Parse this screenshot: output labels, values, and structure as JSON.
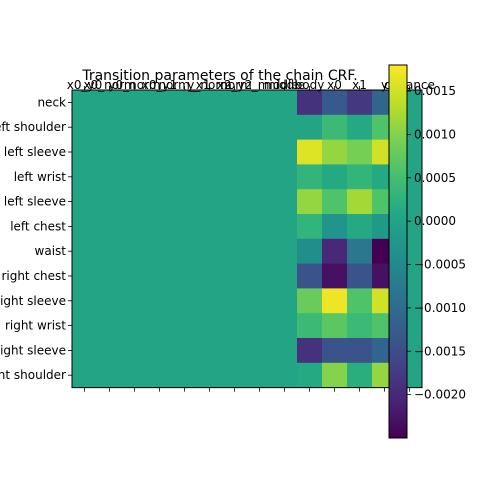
{
  "chart_data": {
    "type": "heatmap",
    "title": "Transition parameters of the chain CRF.",
    "x_labels": [
      "x0_y0",
      "x0_norm",
      "y0_norm",
      "x0_y1",
      "norm_x1",
      "y_norm",
      "x2_y2",
      "norm_middle",
      "middle",
      "body",
      "x0",
      "x1",
      "y",
      "distance"
    ],
    "y_labels": [
      "neck",
      "left shoulder",
      "left sleeve",
      "left wrist",
      "left sleeve",
      "left chest",
      "waist",
      "right chest",
      "right sleeve",
      "right wrist",
      "right sleeve",
      "right shoulder"
    ],
    "values": [
      [
        0,
        0,
        0,
        0,
        0,
        0,
        0,
        0,
        0,
        -0.0019,
        -0.0013,
        -0.0018,
        -0.0011,
        0
      ],
      [
        0,
        0,
        0,
        0,
        0,
        0,
        0,
        0,
        0,
        0,
        0.0004,
        0.0001,
        0.0006,
        0
      ],
      [
        0,
        0,
        0,
        0,
        0,
        0,
        0,
        0,
        0,
        0.0016,
        0.0011,
        0.0009,
        0.0015,
        0
      ],
      [
        0,
        0,
        0,
        0,
        0,
        0,
        0,
        0,
        0,
        0.0003,
        0.0001,
        0.0003,
        0.0001,
        0
      ],
      [
        0,
        0,
        0,
        0,
        0,
        0,
        0,
        0,
        0,
        0.0011,
        0.0006,
        0.0012,
        0.0006,
        0
      ],
      [
        0,
        0,
        0,
        0,
        0,
        0,
        0,
        0,
        0,
        0.0003,
        -0.0003,
        0.0001,
        -0.0002,
        0
      ],
      [
        0,
        0,
        0,
        0,
        0,
        0,
        0,
        0,
        0,
        -0.0004,
        -0.002,
        -0.0008,
        -0.0025,
        0
      ],
      [
        0,
        0,
        0,
        0,
        0,
        0,
        0,
        0,
        0,
        -0.0014,
        -0.0023,
        -0.0014,
        -0.0023,
        0
      ],
      [
        0,
        0,
        0,
        0,
        0,
        0,
        0,
        0,
        0,
        0.0008,
        0.0017,
        0.0006,
        0.0015,
        0
      ],
      [
        0,
        0,
        0,
        0,
        0,
        0,
        0,
        0,
        0,
        0.0004,
        0.0007,
        0.0004,
        0.0006,
        0
      ],
      [
        0,
        0,
        0,
        0,
        0,
        0,
        0,
        0,
        0,
        -0.0019,
        -0.0014,
        -0.0014,
        -0.0011,
        0
      ],
      [
        0,
        0,
        0,
        0,
        0,
        0,
        0,
        0,
        0,
        0.0001,
        0.001,
        0.0002,
        0.0011,
        0
      ]
    ],
    "vmin": -0.0025,
    "vmax": 0.0018,
    "colormap": "viridis",
    "colorbar_ticks": [
      "0.0015",
      "0.0010",
      "0.0005",
      "0.0000",
      "−0.0005",
      "−0.0010",
      "−0.0015",
      "−0.0020"
    ],
    "colorbar_tick_values": [
      0.0015,
      0.001,
      0.0005,
      0.0,
      -0.0005,
      -0.001,
      -0.0015,
      -0.002
    ]
  }
}
